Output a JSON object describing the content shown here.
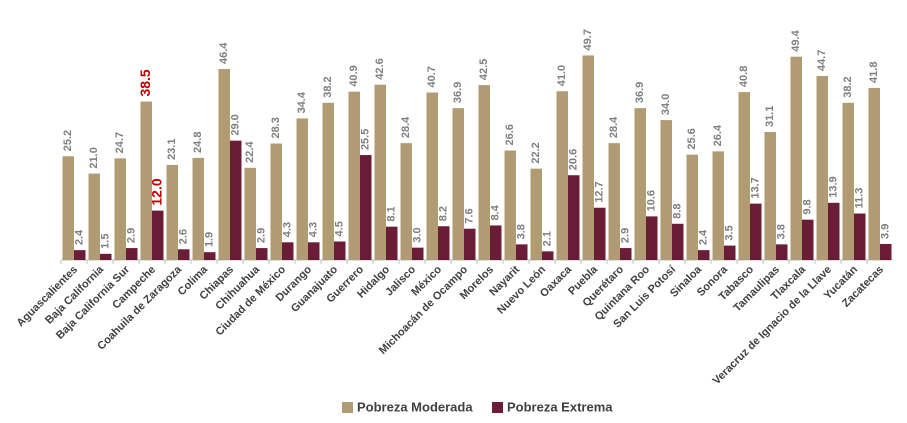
{
  "chart_data": {
    "type": "bar",
    "categories": [
      "Aguascalientes",
      "Baja California",
      "Baja California Sur",
      "Campeche",
      "Coahuila de Zaragoza",
      "Colima",
      "Chiapas",
      "Chihuahua",
      "Ciudad de México",
      "Durango",
      "Guanajuato",
      "Guerrero",
      "Hidalgo",
      "Jalisco",
      "México",
      "Michoacán de Ocampo",
      "Morelos",
      "Nayarit",
      "Nuevo León",
      "Oaxaca",
      "Puebla",
      "Querétaro",
      "Quintana Roo",
      "San Luis Potosí",
      "Sinaloa",
      "Sonora",
      "Tabasco",
      "Tamaulipas",
      "Tlaxcala",
      "Veracruz de Ignacio de la Llave",
      "Yucatán",
      "Zacatecas"
    ],
    "series": [
      {
        "name": "Pobreza Moderada",
        "color": "#b09b74",
        "values": [
          25.2,
          21.0,
          24.7,
          38.5,
          23.1,
          24.8,
          46.4,
          22.4,
          28.3,
          34.4,
          38.2,
          40.9,
          42.6,
          28.4,
          40.7,
          36.9,
          42.5,
          26.6,
          22.2,
          41.0,
          49.7,
          28.4,
          36.9,
          34.0,
          25.6,
          26.4,
          40.8,
          31.1,
          49.4,
          44.7,
          38.2,
          41.8
        ],
        "value_labels": [
          "25.2",
          "21.0",
          "24.7",
          "38.5",
          "23.1",
          "24.8",
          "46.4",
          "22.4",
          "28.3",
          "34.4",
          "38.2",
          "40.9",
          "42.6",
          "28.4",
          "40.7",
          "36.9",
          "42.5",
          "26.6",
          "22.2",
          "41.0",
          "49.7",
          "28.4",
          "36.9",
          "34.0",
          "25.6",
          "26.4",
          "40.8",
          "31.1",
          "49.4",
          "44.7",
          "38.2",
          "41.8"
        ]
      },
      {
        "name": "Pobreza Extrema",
        "color": "#6b1d38",
        "values": [
          2.4,
          1.5,
          2.9,
          12.0,
          2.6,
          1.9,
          29.0,
          2.9,
          4.3,
          4.3,
          4.5,
          25.5,
          8.1,
          3.0,
          8.2,
          7.6,
          8.4,
          3.8,
          2.1,
          20.6,
          12.7,
          2.9,
          10.6,
          8.8,
          2.4,
          3.5,
          13.7,
          3.8,
          9.8,
          13.9,
          11.3,
          3.9
        ],
        "value_labels": [
          "2.4",
          "1.5",
          "2.9",
          "12.0",
          "2.6",
          "1.9",
          "29.0",
          "2.9",
          "4.3",
          "4.3",
          "4.5",
          "25.5",
          "8.1",
          "3.0",
          "8.2",
          "7.6",
          "8.4",
          "3.8",
          "2.1",
          "20.6",
          "12.7",
          "2.9",
          "10.6",
          "8.8",
          "2.4",
          "3.5",
          "13.7",
          "3.8",
          "9.8",
          "13.9",
          "11.3",
          "3.9"
        ]
      }
    ],
    "ylim": [
      0,
      52
    ],
    "highlight_index": 3,
    "highlight_color": "#c00000",
    "legend": "bottom"
  }
}
